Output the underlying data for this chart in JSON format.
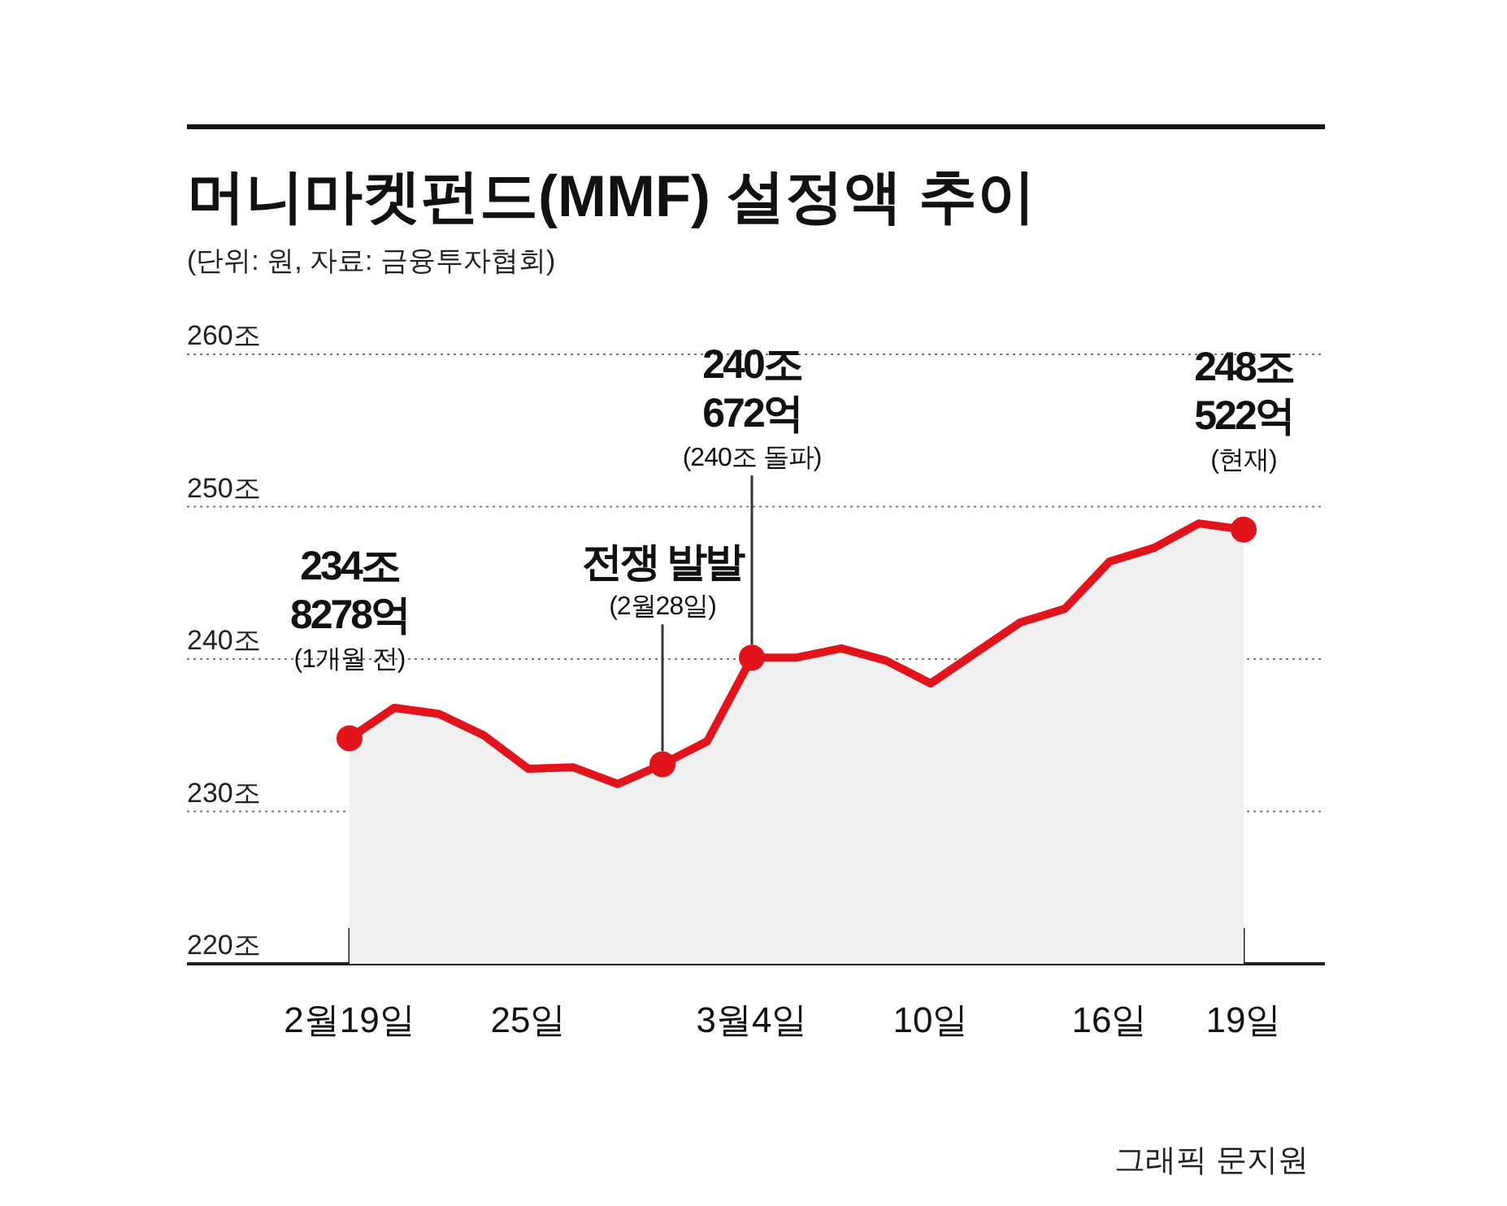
{
  "chart_data": {
    "type": "area",
    "title": "머니마켓펀드(MMF) 설정액 추이",
    "subtitle": "(단위: 원, 자료: 금융투자협회)",
    "categories": [
      "2월19일",
      null,
      null,
      null,
      "25일",
      null,
      null,
      null,
      null,
      "3월4일",
      null,
      null,
      null,
      "10일",
      null,
      null,
      null,
      "16일",
      null,
      null,
      "19일"
    ],
    "series": [
      {
        "type": "area",
        "color": "#e2141b",
        "values": [
          234.8,
          236.8,
          236.4,
          235.0,
          232.8,
          232.9,
          231.8,
          233.1,
          234.6,
          240.1,
          240.1,
          240.7,
          239.9,
          238.4,
          240.4,
          242.4,
          243.3,
          246.4,
          247.3,
          248.9,
          248.5
        ]
      },
      {
        "type": "scatter",
        "color": "#e2141b",
        "values": [
          234.8,
          null,
          null,
          null,
          null,
          null,
          null,
          233.1,
          null,
          240.1,
          null,
          null,
          null,
          null,
          null,
          null,
          null,
          null,
          null,
          null,
          248.5
        ]
      }
    ],
    "ylim": [
      220,
      260
    ],
    "yticks": [
      {
        "value": 220,
        "label": "220조"
      },
      {
        "value": 230,
        "label": "230조"
      },
      {
        "value": 240,
        "label": "240조"
      },
      {
        "value": 250,
        "label": "250조"
      },
      {
        "value": 260,
        "label": "260조"
      }
    ],
    "grid": "y",
    "annotations": [
      {
        "text": "234조\n8278억\n(1개월 전)",
        "x": "2월19일",
        "y": 234.8
      },
      {
        "text": "전쟁 발발\n(2월28일)",
        "y": 233.1
      },
      {
        "text": "240조\n672억\n(240조 돌파)",
        "x": "3월4일",
        "y": 240.1
      },
      {
        "text": "248조\n522억\n(현재)",
        "x": "19일",
        "y": 248.5
      },
      "그래픽 문지원"
    ]
  }
}
